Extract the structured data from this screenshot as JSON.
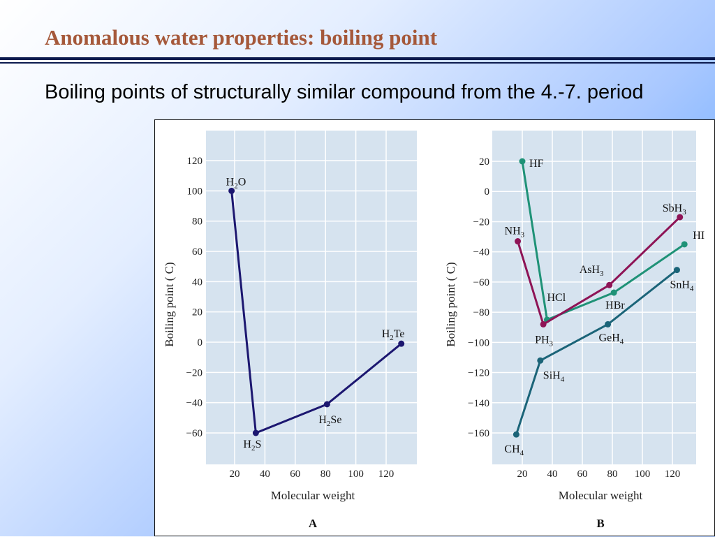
{
  "slide": {
    "title": "Anomalous water properties: boiling point",
    "body_text": "Boiling points of structurally similar compound from the 4.-7. period"
  },
  "colors": {
    "plot_background": "#d6e3ef",
    "grid": "#ffffff",
    "series_A": "#1c1770",
    "HF_series": "#1f9277",
    "NH3_series": "#8e1456",
    "CH4_series": "#1b6478"
  },
  "chart_data": [
    {
      "type": "line",
      "panel_label": "A",
      "xlabel": "Molecular weight",
      "ylabel": "Boiling point ( C)",
      "xlim": [
        0,
        140
      ],
      "ylim": [
        -80,
        130
      ],
      "xticks": [
        20,
        40,
        60,
        80,
        100,
        120
      ],
      "yticks": [
        -60,
        -40,
        -20,
        0,
        20,
        40,
        60,
        80,
        100,
        120
      ],
      "grid": true,
      "series": [
        {
          "color": "#1c1770",
          "points": [
            {
              "x": 18,
              "y": 100,
              "label": "H",
              "sub": "2",
              "tail": "O"
            },
            {
              "x": 34,
              "y": -60,
              "label": "H",
              "sub": "2",
              "tail": "S"
            },
            {
              "x": 81,
              "y": -41,
              "label": "H",
              "sub": "2",
              "tail": "Se"
            },
            {
              "x": 130,
              "y": -1,
              "label": "H",
              "sub": "2",
              "tail": "Te"
            }
          ]
        }
      ]
    },
    {
      "type": "line",
      "panel_label": "B",
      "xlabel": "Molecular weight",
      "ylabel": "Boiling point ( C)",
      "xlim": [
        0,
        140
      ],
      "ylim": [
        -180,
        30
      ],
      "xticks": [
        20,
        40,
        60,
        80,
        100,
        120
      ],
      "yticks": [
        -160,
        -140,
        -120,
        -100,
        -80,
        -60,
        -40,
        -20,
        0,
        20
      ],
      "grid": true,
      "series": [
        {
          "color": "#1f9277",
          "points": [
            {
              "x": 20,
              "y": 20,
              "label": "HF",
              "sub": "",
              "tail": ""
            },
            {
              "x": 36.5,
              "y": -85,
              "label": "HCl",
              "sub": "",
              "tail": ""
            },
            {
              "x": 81,
              "y": -67,
              "label": "HBr",
              "sub": "",
              "tail": ""
            },
            {
              "x": 128,
              "y": -35,
              "label": "HI",
              "sub": "",
              "tail": ""
            }
          ]
        },
        {
          "color": "#8e1456",
          "points": [
            {
              "x": 17,
              "y": -33,
              "label": "NH",
              "sub": "3",
              "tail": ""
            },
            {
              "x": 34,
              "y": -88,
              "label": "PH",
              "sub": "3",
              "tail": ""
            },
            {
              "x": 78,
              "y": -62,
              "label": "AsH",
              "sub": "3",
              "tail": ""
            },
            {
              "x": 125,
              "y": -17,
              "label": "SbH",
              "sub": "3",
              "tail": ""
            }
          ]
        },
        {
          "color": "#1b6478",
          "points": [
            {
              "x": 16,
              "y": -161,
              "label": "CH",
              "sub": "4",
              "tail": ""
            },
            {
              "x": 32,
              "y": -112,
              "label": "SiH",
              "sub": "4",
              "tail": ""
            },
            {
              "x": 77,
              "y": -88,
              "label": "GeH",
              "sub": "4",
              "tail": ""
            },
            {
              "x": 123,
              "y": -52,
              "label": "SnH",
              "sub": "4",
              "tail": ""
            }
          ]
        }
      ]
    }
  ]
}
